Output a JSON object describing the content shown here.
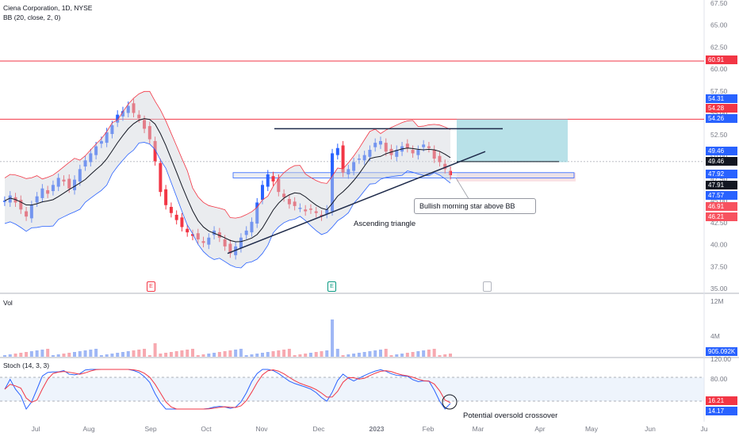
{
  "legend": {
    "symbol": "Ciena Corporation, 1D, NYSE",
    "bb": "BB (20, close, 2, 0)",
    "vol": "Vol",
    "stoch": "Stoch (14, 3, 3)"
  },
  "price_axis": {
    "ticks": [
      "67.50",
      "65.00",
      "62.50",
      "60.00",
      "57.50",
      "55.00",
      "52.50",
      "50.00",
      "47.50",
      "45.00",
      "42.50",
      "40.00",
      "37.50",
      "35.00"
    ]
  },
  "price_tags": [
    {
      "value": "60.91",
      "color": "#f23645"
    },
    {
      "value": "54.31",
      "color": "#2962ff"
    },
    {
      "value": "54.28",
      "color": "#f23645"
    },
    {
      "value": "54.26",
      "color": "#2962ff"
    },
    {
      "value": "49.46",
      "color": "#2962ff"
    },
    {
      "value": "49.46",
      "color": "#131722"
    },
    {
      "value": "47.92",
      "color": "#2962ff"
    },
    {
      "value": "47.91",
      "color": "#131722"
    },
    {
      "value": "47.57",
      "color": "#2962ff"
    },
    {
      "value": "46.91",
      "color": "#f7525f"
    },
    {
      "value": "46.21",
      "color": "#f7525f"
    }
  ],
  "vol_axis": {
    "ticks": [
      "12M",
      "4M"
    ],
    "tag": "905.092K",
    "tag_color": "#2962ff"
  },
  "stoch_axis": {
    "ticks": [
      "120.00",
      "80.00",
      "20.00"
    ],
    "tags": [
      {
        "value": "16.21",
        "color": "#f23645"
      },
      {
        "value": "14.17",
        "color": "#2962ff"
      }
    ]
  },
  "time_axis": {
    "labels": [
      "Jul",
      "Aug",
      "Sep",
      "Oct",
      "Nov",
      "Dec",
      "2023",
      "Feb",
      "Mar",
      "Apr",
      "May",
      "Jun",
      "Ju"
    ]
  },
  "markers": [
    {
      "letter": "E",
      "color": "#f23645"
    },
    {
      "letter": "E",
      "color": "#089981"
    },
    {
      "letter": "",
      "color": "#b2b5be"
    }
  ],
  "annotations": {
    "morning_star": "Bullish morning star above BB",
    "triangle": "Ascending triangle",
    "crossover": "Potential oversold crossover"
  },
  "colors": {
    "up": "#2962ff",
    "down": "#f23645",
    "bb_band": "#f23645",
    "bb_lower": "#2962ff",
    "bb_fill": "#d1d4dc",
    "target": "#7ec8d6"
  },
  "chart_data": {
    "type": "candlestick",
    "title": "Ciena Corporation, 1D, NYSE",
    "ylim": [
      35,
      67.5
    ],
    "horizontal_levels": [
      60.91,
      54.28,
      49.46,
      47.91
    ],
    "series": [
      {
        "name": "close",
        "values": [
          45.0,
          45.6,
          44.8,
          44.0,
          43.2,
          44.5,
          45.5,
          46.4,
          45.8,
          46.8,
          47.6,
          47.2,
          46.4,
          47.4,
          48.6,
          49.6,
          50.4,
          51.2,
          51.8,
          52.8,
          53.6,
          54.8,
          55.2,
          55.8,
          55.0,
          54.4,
          53.2,
          52.0,
          49.5,
          46.0,
          44.5,
          43.6,
          42.8,
          42.0,
          41.4,
          41.0,
          40.6,
          40.2,
          40.8,
          41.6,
          40.8,
          39.8,
          39.0,
          39.8,
          40.8,
          41.6,
          42.6,
          44.8,
          46.8,
          48.0,
          47.2,
          46.0,
          45.4,
          44.6,
          44.4,
          44.2,
          43.8,
          44.0,
          43.6,
          43.2,
          44.0,
          50.4,
          51.0,
          48.2,
          48.6,
          49.4,
          49.8,
          50.2,
          50.8,
          51.6,
          51.8,
          50.6,
          50.2,
          50.8,
          51.2,
          51.0,
          50.4,
          50.8,
          51.4,
          51.0,
          49.8,
          49.4,
          48.6,
          47.91
        ]
      }
    ],
    "stoch": {
      "k_last": 14.17,
      "d_last": 16.21,
      "levels": [
        80,
        20
      ]
    }
  }
}
